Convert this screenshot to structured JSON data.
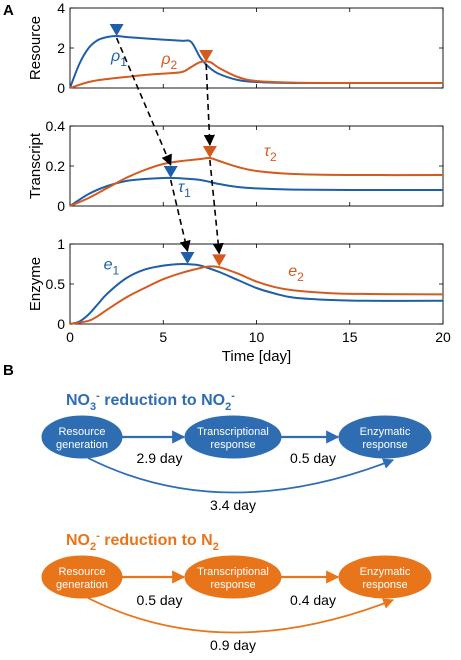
{
  "panel_labels": {
    "a": "A",
    "b": "B"
  },
  "colors": {
    "blue": "#1f5fa8",
    "orange": "#d45a1f",
    "node_blue": "#2f6db3",
    "node_orange": "#e8751a"
  },
  "chart_data": [
    {
      "type": "line",
      "ylabel": "Resource",
      "xlim": [
        0,
        20
      ],
      "ylim": [
        0,
        4
      ],
      "xticks": [
        0,
        5,
        10,
        15,
        20
      ],
      "yticks": [
        0,
        2,
        4
      ],
      "grid": false,
      "series": [
        {
          "name": "ρ1",
          "color": "#1f5fa8",
          "x": [
            0,
            0.5,
            1,
            1.5,
            2,
            2.5,
            3,
            4,
            5,
            6,
            6.5,
            7,
            7.5,
            8,
            9,
            10,
            12,
            15,
            20
          ],
          "values": [
            0,
            1.2,
            2.0,
            2.4,
            2.55,
            2.6,
            2.55,
            2.48,
            2.42,
            2.36,
            2.3,
            1.5,
            1.0,
            0.7,
            0.4,
            0.3,
            0.25,
            0.25,
            0.25
          ]
        },
        {
          "name": "ρ2",
          "color": "#d45a1f",
          "x": [
            0,
            1,
            2,
            3,
            4,
            5,
            6,
            6.5,
            7,
            7.5,
            8,
            9,
            10,
            12,
            15,
            20
          ],
          "values": [
            0,
            0.3,
            0.45,
            0.55,
            0.65,
            0.72,
            0.8,
            1.05,
            1.3,
            1.3,
            1.0,
            0.55,
            0.35,
            0.27,
            0.25,
            0.25
          ]
        }
      ],
      "markers": [
        {
          "series": "ρ1",
          "x": 2.5,
          "y": 2.6
        },
        {
          "series": "ρ2",
          "x": 7.3,
          "y": 1.3
        }
      ],
      "annotations": [
        {
          "text": "ρ",
          "sub": "1",
          "x": 2.2,
          "y": 1.35
        },
        {
          "text": "ρ",
          "sub": "2",
          "x": 4.9,
          "y": 1.2
        }
      ]
    },
    {
      "type": "line",
      "ylabel": "Transcript",
      "xlim": [
        0,
        20
      ],
      "ylim": [
        0,
        0.4
      ],
      "xticks": [
        0,
        5,
        10,
        15,
        20
      ],
      "yticks": [
        0,
        0.2,
        0.4
      ],
      "grid": false,
      "series": [
        {
          "name": "τ1",
          "color": "#1f5fa8",
          "x": [
            0,
            1,
            2,
            3,
            4,
            5,
            5.5,
            6,
            7,
            8,
            9,
            10,
            12,
            15,
            20
          ],
          "values": [
            0,
            0.06,
            0.1,
            0.125,
            0.135,
            0.14,
            0.14,
            0.138,
            0.13,
            0.11,
            0.095,
            0.088,
            0.082,
            0.08,
            0.08
          ]
        },
        {
          "name": "τ2",
          "color": "#d45a1f",
          "x": [
            0,
            1,
            2,
            3,
            4,
            5,
            6,
            7,
            7.5,
            8,
            9,
            10,
            12,
            15,
            20
          ],
          "values": [
            0,
            0.04,
            0.09,
            0.14,
            0.18,
            0.21,
            0.225,
            0.235,
            0.24,
            0.225,
            0.195,
            0.175,
            0.16,
            0.155,
            0.155
          ]
        }
      ],
      "markers": [
        {
          "series": "τ1",
          "x": 5.4,
          "y": 0.14
        },
        {
          "series": "τ2",
          "x": 7.5,
          "y": 0.24
        }
      ],
      "annotations": [
        {
          "text": "τ",
          "sub": "1",
          "x": 5.8,
          "y": 0.07
        },
        {
          "text": "τ",
          "sub": "2",
          "x": 10.4,
          "y": 0.25
        }
      ]
    },
    {
      "type": "line",
      "ylabel": "Enzyme",
      "xlabel": "Time [day]",
      "xlim": [
        0,
        20
      ],
      "ylim": [
        0,
        1
      ],
      "xticks": [
        0,
        5,
        10,
        15,
        20
      ],
      "yticks": [
        0,
        0.5,
        1
      ],
      "grid": false,
      "series": [
        {
          "name": "e1",
          "color": "#1f5fa8",
          "x": [
            0,
            0.5,
            1,
            1.5,
            2,
            3,
            4,
            5,
            6,
            6.5,
            7,
            8,
            9,
            10,
            11,
            12,
            14,
            16,
            20
          ],
          "values": [
            0,
            0.03,
            0.12,
            0.25,
            0.38,
            0.57,
            0.68,
            0.73,
            0.75,
            0.745,
            0.73,
            0.65,
            0.55,
            0.45,
            0.38,
            0.33,
            0.3,
            0.29,
            0.29
          ]
        },
        {
          "name": "e2",
          "color": "#d45a1f",
          "x": [
            0,
            1,
            1.5,
            2,
            3,
            4,
            5,
            6,
            7,
            7.5,
            8,
            9,
            10,
            11,
            12,
            14,
            16,
            20
          ],
          "values": [
            0,
            0.04,
            0.1,
            0.18,
            0.33,
            0.45,
            0.56,
            0.64,
            0.7,
            0.72,
            0.71,
            0.63,
            0.53,
            0.46,
            0.42,
            0.385,
            0.375,
            0.37
          ]
        }
      ],
      "markers": [
        {
          "series": "e1",
          "x": 6.3,
          "y": 0.75
        },
        {
          "series": "e2",
          "x": 8.0,
          "y": 0.72
        }
      ],
      "annotations": [
        {
          "text": "e",
          "sub": "1",
          "x": 1.8,
          "y": 0.68
        },
        {
          "text": "e",
          "sub": "2",
          "x": 11.7,
          "y": 0.6
        }
      ]
    }
  ],
  "flows": [
    {
      "title": {
        "pre": "NO",
        "sub1": "3",
        "sup1": "-",
        "mid": " reduction to NO",
        "sub2": "2",
        "sup2": "-"
      },
      "color": "#2f6db3",
      "nodes": [
        {
          "line1": "Resource",
          "line2": "generation"
        },
        {
          "line1": "Transcriptional",
          "line2": "response"
        },
        {
          "line1": "Enzymatic",
          "line2": "response"
        }
      ],
      "edge_labels": [
        "2.9 day",
        "0.5 day"
      ],
      "total_label": "3.4 day"
    },
    {
      "title": {
        "pre": "NO",
        "sub1": "2",
        "sup1": "-",
        "mid": " reduction to N",
        "sub2": "2",
        "sup2": ""
      },
      "color": "#e8751a",
      "nodes": [
        {
          "line1": "Resource",
          "line2": "generation"
        },
        {
          "line1": "Transcriptional",
          "line2": "response"
        },
        {
          "line1": "Enzymatic",
          "line2": "response"
        }
      ],
      "edge_labels": [
        "0.5 day",
        "0.4 day"
      ],
      "total_label": "0.9 day"
    }
  ]
}
